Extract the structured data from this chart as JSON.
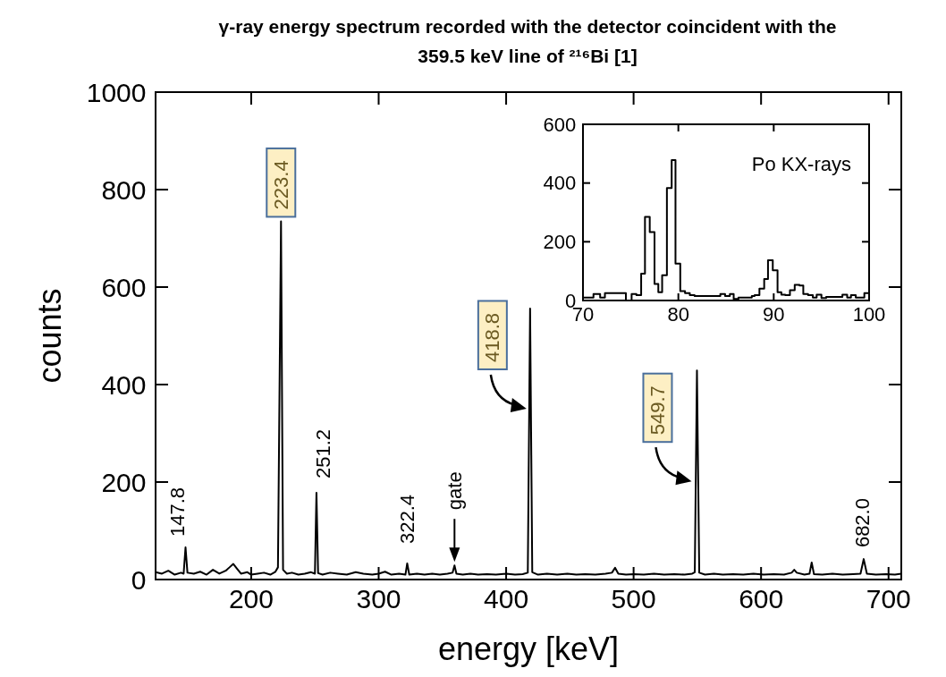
{
  "chart_data": [
    {
      "type": "line",
      "title": "γ-ray energy spectrum recorded with the detector coincident with the 359.5 keV line of ²¹⁶Bi [1]",
      "xlabel": "energy [keV]",
      "ylabel": "counts",
      "color": "#000000",
      "x": [
        125,
        130,
        135,
        140,
        145,
        147,
        148.5,
        150,
        155,
        160,
        165,
        170,
        175,
        180,
        183,
        186,
        189,
        192,
        197,
        200,
        205,
        210,
        215,
        219,
        221,
        223.4,
        225,
        228,
        232,
        237,
        242,
        247,
        250,
        251.2,
        252.5,
        256,
        262,
        268,
        275,
        282,
        288,
        295,
        300,
        305,
        310,
        316,
        321,
        322.4,
        324,
        330,
        336,
        342,
        348,
        354,
        358,
        359.5,
        361,
        366,
        372,
        378,
        385,
        392,
        400,
        407,
        413,
        417,
        418.8,
        420.5,
        425,
        432,
        440,
        448,
        455,
        462,
        470,
        478,
        483,
        485.5,
        488,
        494,
        500,
        508,
        516,
        524,
        532,
        540,
        546,
        548,
        549.7,
        551.5,
        556,
        563,
        570,
        578,
        586,
        594,
        602,
        610,
        618,
        624,
        626,
        628,
        634,
        638,
        639.7,
        641.5,
        648,
        656,
        664,
        672,
        678,
        680.5,
        683,
        690,
        698,
        705,
        710
      ],
      "values": [
        15,
        12,
        18,
        10,
        14,
        12,
        66,
        14,
        12,
        16,
        10,
        20,
        12,
        18,
        25,
        32,
        22,
        12,
        15,
        10,
        12,
        14,
        10,
        16,
        25,
        735,
        20,
        12,
        14,
        10,
        12,
        15,
        12,
        178,
        13,
        10,
        14,
        12,
        10,
        15,
        12,
        10,
        12,
        16,
        10,
        12,
        10,
        33,
        10,
        12,
        10,
        12,
        10,
        12,
        14,
        29,
        12,
        10,
        12,
        10,
        11,
        10,
        12,
        10,
        11,
        14,
        556,
        15,
        10,
        12,
        10,
        12,
        10,
        11,
        10,
        12,
        14,
        24,
        12,
        10,
        11,
        10,
        12,
        10,
        11,
        10,
        12,
        15,
        429,
        14,
        10,
        12,
        10,
        11,
        10,
        12,
        10,
        11,
        10,
        14,
        20,
        14,
        10,
        12,
        35,
        11,
        10,
        12,
        10,
        11,
        12,
        42,
        12,
        10,
        11,
        10,
        12
      ],
      "xlim": [
        125,
        710
      ],
      "xticks": [
        200,
        300,
        400,
        500,
        600,
        700
      ],
      "ylim": [
        0,
        1000
      ],
      "yticks": [
        0,
        200,
        400,
        600,
        800,
        1000
      ],
      "annotations": [
        {
          "text": "147.8",
          "x": 147.8,
          "y": 66
        },
        {
          "text": "223.4",
          "x": 223.4,
          "y": 735
        },
        {
          "text": "251.2",
          "x": 251.2,
          "y": 178
        },
        {
          "text": "322.4",
          "x": 322.4,
          "y": 33
        },
        {
          "text": "gate",
          "x": 359.5,
          "y": 29
        },
        {
          "text": "418.8",
          "x": 418.8,
          "y": 556
        },
        {
          "text": "549.7",
          "x": 549.7,
          "y": 429
        },
        {
          "text": "682.0",
          "x": 682.0,
          "y": 42
        }
      ]
    },
    {
      "type": "histogram",
      "color": "#000000",
      "bins": [
        70.0,
        71.1,
        71.8,
        72.3,
        74.5,
        75.1,
        75.6,
        76.1,
        76.5,
        77.0,
        77.5,
        77.9,
        78.3,
        78.8,
        79.3,
        79.7,
        80.2,
        80.7,
        81.2,
        81.7,
        84.4,
        84.9,
        85.4,
        85.8,
        86.3,
        87.7,
        88.0,
        88.5,
        89.0,
        89.4,
        89.9,
        90.4,
        90.8,
        91.2,
        91.7,
        92.2,
        92.7,
        93.1,
        93.6,
        94.1,
        94.5,
        95.0,
        95.5,
        97.2,
        97.7,
        98.1,
        98.6,
        99.5,
        100.0
      ],
      "values": [
        10,
        22,
        10,
        25,
        0,
        22,
        18,
        91,
        285,
        233,
        56,
        28,
        86,
        383,
        478,
        126,
        32,
        25,
        18,
        15,
        22,
        15,
        22,
        5,
        10,
        15,
        18,
        40,
        73,
        137,
        103,
        28,
        20,
        18,
        35,
        53,
        51,
        22,
        18,
        10,
        20,
        8,
        12,
        20,
        10,
        18,
        10,
        25
      ],
      "xlim": [
        70,
        100
      ],
      "xticks": [
        70,
        80,
        90,
        100
      ],
      "ylim": [
        0,
        600
      ],
      "yticks": [
        0,
        200,
        400,
        600
      ],
      "annotations": [
        "Po KX-rays"
      ]
    }
  ]
}
